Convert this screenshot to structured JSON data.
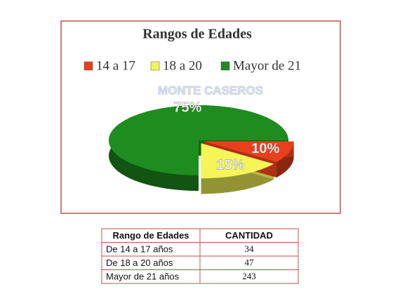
{
  "chart_data": {
    "type": "pie",
    "title": "Rangos de Edades",
    "watermark": "MONTE CASEROS",
    "series": [
      {
        "name": "14 a 17",
        "color": "#e8401c",
        "values": [
          10
        ],
        "value_labels": [
          "10%"
        ]
      },
      {
        "name": "18 a 20",
        "color": "#f5f55a",
        "values": [
          15
        ],
        "value_labels": [
          "15%"
        ]
      },
      {
        "name": "Mayor de 21",
        "color": "#1e8c1e",
        "values": [
          75
        ],
        "value_labels": [
          "75%"
        ]
      }
    ],
    "legend": "top"
  },
  "table": {
    "header": [
      "Rango de Edades",
      "CANTIDAD"
    ],
    "rows": [
      [
        "De 14 a 17 años",
        34
      ],
      [
        "De 18 a 20 años",
        47
      ],
      [
        "Mayor  de 21 años",
        243
      ]
    ]
  }
}
